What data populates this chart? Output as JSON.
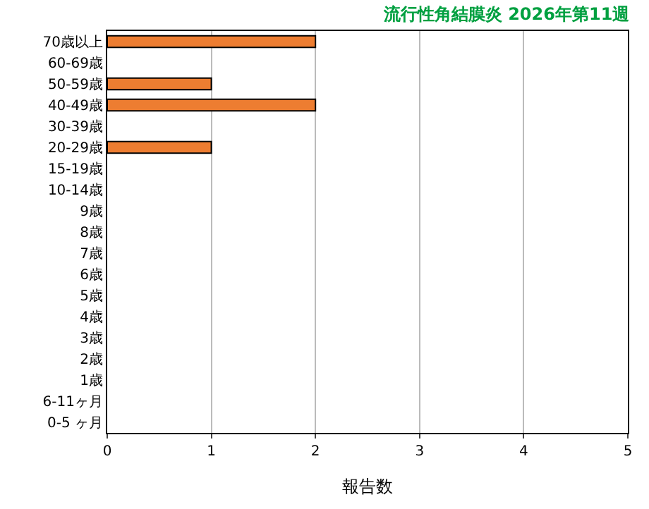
{
  "chart_data": {
    "type": "bar",
    "orientation": "horizontal",
    "title": "流行性角結膜炎 2026年第11週",
    "xlabel": "報告数",
    "categories": [
      "70歳以上",
      "60-69歳",
      "50-59歳",
      "40-49歳",
      "30-39歳",
      "20-29歳",
      "15-19歳",
      "10-14歳",
      "9歳",
      "8歳",
      "7歳",
      "6歳",
      "5歳",
      "4歳",
      "3歳",
      "2歳",
      "1歳",
      "6-11ヶ月",
      "0-5 ヶ月"
    ],
    "values": [
      2,
      0,
      1,
      2,
      0,
      1,
      0,
      0,
      0,
      0,
      0,
      0,
      0,
      0,
      0,
      0,
      0,
      0,
      0
    ],
    "color": "#ed7d31",
    "xlim": [
      0,
      5
    ],
    "xticks": [
      0,
      1,
      2,
      3,
      4,
      5
    ],
    "grid": "x",
    "legend": false
  }
}
